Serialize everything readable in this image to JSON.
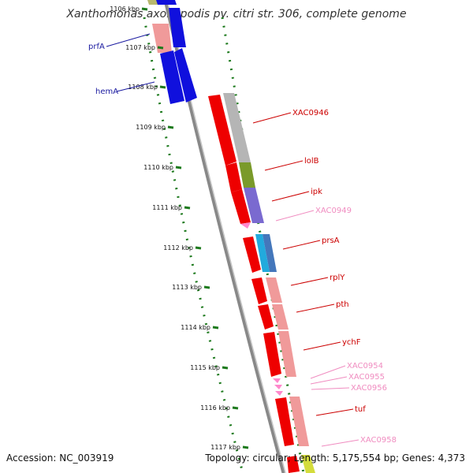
{
  "title": "Xanthomonas axonopodis pv. citri str. 306, complete genome",
  "footer": {
    "accession": "Accession: NC_003919",
    "summary": "Topology: circular; Length: 5,175,554 bp; Genes: 4,373"
  },
  "tick_labels": [
    "1106 kbp",
    "1107 kbp",
    "1108 kbp",
    "1109 kbp",
    "1110 kbp",
    "1111 kbp",
    "1112 kbp",
    "1113 kbp",
    "1114 kbp",
    "1115 kbp",
    "1116 kbp",
    "1117 kbp"
  ],
  "colors": {
    "label_blue": "#1a1aa0",
    "label_red": "#cc0000",
    "label_pink": "#f08cc0",
    "tick_green": "#1d7a1d",
    "backbone_grey": "#7a7a7a"
  },
  "gene_labels": [
    {
      "name": "prfA",
      "color": "blue"
    },
    {
      "name": "hemA",
      "color": "blue"
    },
    {
      "name": "XAC0946",
      "color": "red"
    },
    {
      "name": "lolB",
      "color": "red"
    },
    {
      "name": "ipk",
      "color": "red"
    },
    {
      "name": "XAC0949",
      "color": "pink"
    },
    {
      "name": "prsA",
      "color": "red"
    },
    {
      "name": "rplY",
      "color": "red"
    },
    {
      "name": "pth",
      "color": "red"
    },
    {
      "name": "ychF",
      "color": "red"
    },
    {
      "name": "XAC0954",
      "color": "pink"
    },
    {
      "name": "XAC0955",
      "color": "pink"
    },
    {
      "name": "XAC0956",
      "color": "pink"
    },
    {
      "name": "tuf",
      "color": "red"
    },
    {
      "name": "XAC0958",
      "color": "pink"
    }
  ]
}
